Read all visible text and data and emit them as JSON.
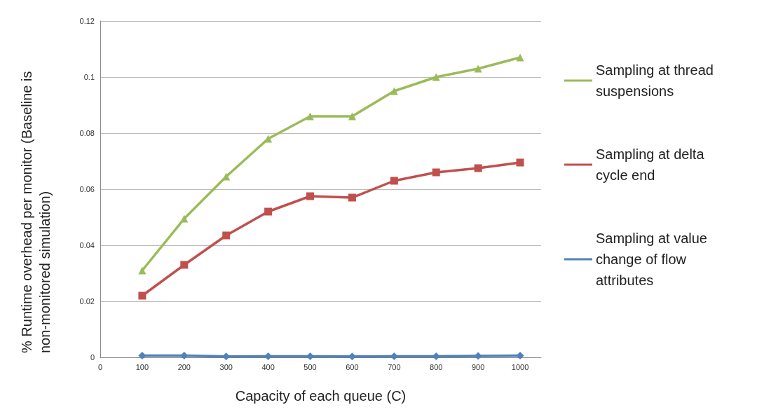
{
  "chart_data": {
    "type": "line",
    "xlabel": "Capacity of each queue (C)",
    "ylabel": "% Runtime overhead per monitor (Baseline is non-monitored simulation)",
    "x": [
      100,
      200,
      300,
      400,
      500,
      600,
      700,
      800,
      900,
      1000
    ],
    "xlim": [
      0,
      1050
    ],
    "xticks": [
      0,
      100,
      200,
      300,
      400,
      500,
      600,
      700,
      800,
      900,
      1000
    ],
    "ylim": [
      0,
      0.12
    ],
    "yticks": [
      0,
      0.02,
      0.04,
      0.06,
      0.08,
      0.1,
      0.12
    ],
    "grid": "y",
    "legend": "right",
    "line_style": "solid",
    "series": [
      {
        "name": "Sampling at thread suspensions",
        "color": "#9bbb59",
        "marker": "triangle",
        "values": [
          0.031,
          0.0495,
          0.0645,
          0.078,
          0.086,
          0.086,
          0.095,
          0.1,
          0.103,
          0.107
        ]
      },
      {
        "name": "Sampling at delta cycle end",
        "color": "#c0504d",
        "marker": "square",
        "values": [
          0.022,
          0.033,
          0.0435,
          0.052,
          0.0575,
          0.057,
          0.063,
          0.066,
          0.0675,
          0.0695
        ]
      },
      {
        "name": "Sampling at value change of flow attributes",
        "color": "#4f81bd",
        "marker": "diamond",
        "values": [
          0.0006,
          0.0006,
          0.0003,
          0.0004,
          0.0004,
          0.0003,
          0.0004,
          0.0004,
          0.0005,
          0.0006
        ]
      }
    ]
  }
}
